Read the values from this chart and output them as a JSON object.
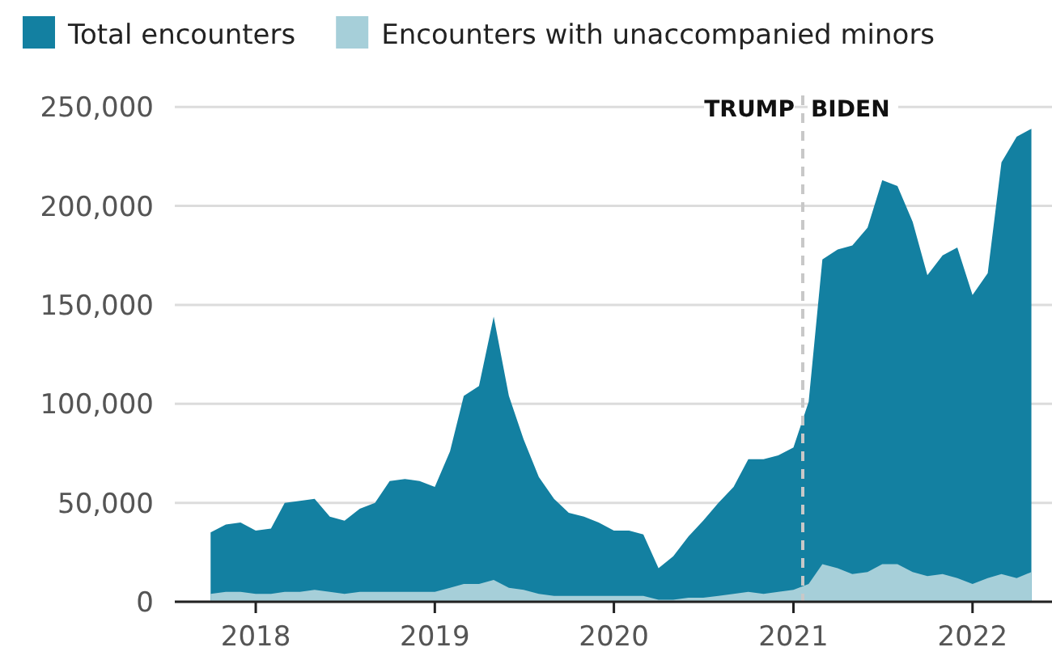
{
  "chart_data": {
    "type": "area",
    "x": [
      "2017-10",
      "2017-11",
      "2017-12",
      "2018-01",
      "2018-02",
      "2018-03",
      "2018-04",
      "2018-05",
      "2018-06",
      "2018-07",
      "2018-08",
      "2018-09",
      "2018-10",
      "2018-11",
      "2018-12",
      "2019-01",
      "2019-02",
      "2019-03",
      "2019-04",
      "2019-05",
      "2019-06",
      "2019-07",
      "2019-08",
      "2019-09",
      "2019-10",
      "2019-11",
      "2019-12",
      "2020-01",
      "2020-02",
      "2020-03",
      "2020-04",
      "2020-05",
      "2020-06",
      "2020-07",
      "2020-08",
      "2020-09",
      "2020-10",
      "2020-11",
      "2020-12",
      "2021-01",
      "2021-02",
      "2021-03",
      "2021-04",
      "2021-05",
      "2021-06",
      "2021-07",
      "2021-08",
      "2021-09",
      "2021-10",
      "2021-11",
      "2021-12",
      "2022-01",
      "2022-02",
      "2022-03",
      "2022-04",
      "2022-05"
    ],
    "series": [
      {
        "name": "Total encounters",
        "color": "#1380a1",
        "values": [
          35000,
          39000,
          40000,
          36000,
          37000,
          50000,
          51000,
          52000,
          43000,
          41000,
          47000,
          50000,
          61000,
          62000,
          61000,
          58000,
          76000,
          104000,
          109000,
          144000,
          104000,
          82000,
          63000,
          52000,
          45000,
          43000,
          40000,
          36000,
          36000,
          34000,
          17000,
          23000,
          33000,
          41000,
          50000,
          58000,
          72000,
          72000,
          74000,
          78000,
          101000,
          173000,
          178000,
          180000,
          189000,
          213000,
          210000,
          192000,
          165000,
          175000,
          179000,
          155000,
          166000,
          222000,
          235000,
          239000
        ]
      },
      {
        "name": "Encounters with unaccompanied minors",
        "color": "#a6cfd9",
        "values": [
          4000,
          5000,
          5000,
          4000,
          4000,
          5000,
          5000,
          6000,
          5000,
          4000,
          5000,
          5000,
          5000,
          5000,
          5000,
          5000,
          7000,
          9000,
          9000,
          11000,
          7000,
          6000,
          4000,
          3000,
          3000,
          3000,
          3000,
          3000,
          3000,
          3000,
          1000,
          1000,
          2000,
          2000,
          3000,
          4000,
          5000,
          4000,
          5000,
          6000,
          9000,
          19000,
          17000,
          14000,
          15000,
          19000,
          19000,
          15000,
          13000,
          14000,
          12000,
          9000,
          12000,
          14000,
          12000,
          15000
        ]
      }
    ],
    "xlim": [
      "2017-07-20",
      "2022-06-12"
    ],
    "xticks": [
      {
        "value": "2018-01",
        "label": "2018"
      },
      {
        "value": "2019-01",
        "label": "2019"
      },
      {
        "value": "2020-01",
        "label": "2020"
      },
      {
        "value": "2021-01",
        "label": "2021"
      },
      {
        "value": "2022-01",
        "label": "2022"
      }
    ],
    "ylim": [
      0,
      255000
    ],
    "yticks": [
      {
        "value": 0,
        "label": "0"
      },
      {
        "value": 50000,
        "label": "50,000"
      },
      {
        "value": 100000,
        "label": "100,000"
      },
      {
        "value": 150000,
        "label": "150,000"
      },
      {
        "value": 200000,
        "label": "200,000"
      },
      {
        "value": 250000,
        "label": "250,000"
      }
    ],
    "grid": "y",
    "legend": "top left",
    "ref_lines": [
      {
        "axis": "x",
        "value": "2021-01-20",
        "color": "#c8c8c8",
        "line_style": "dashed"
      }
    ],
    "annotations": [
      "TRUMP",
      "BIDEN"
    ]
  }
}
